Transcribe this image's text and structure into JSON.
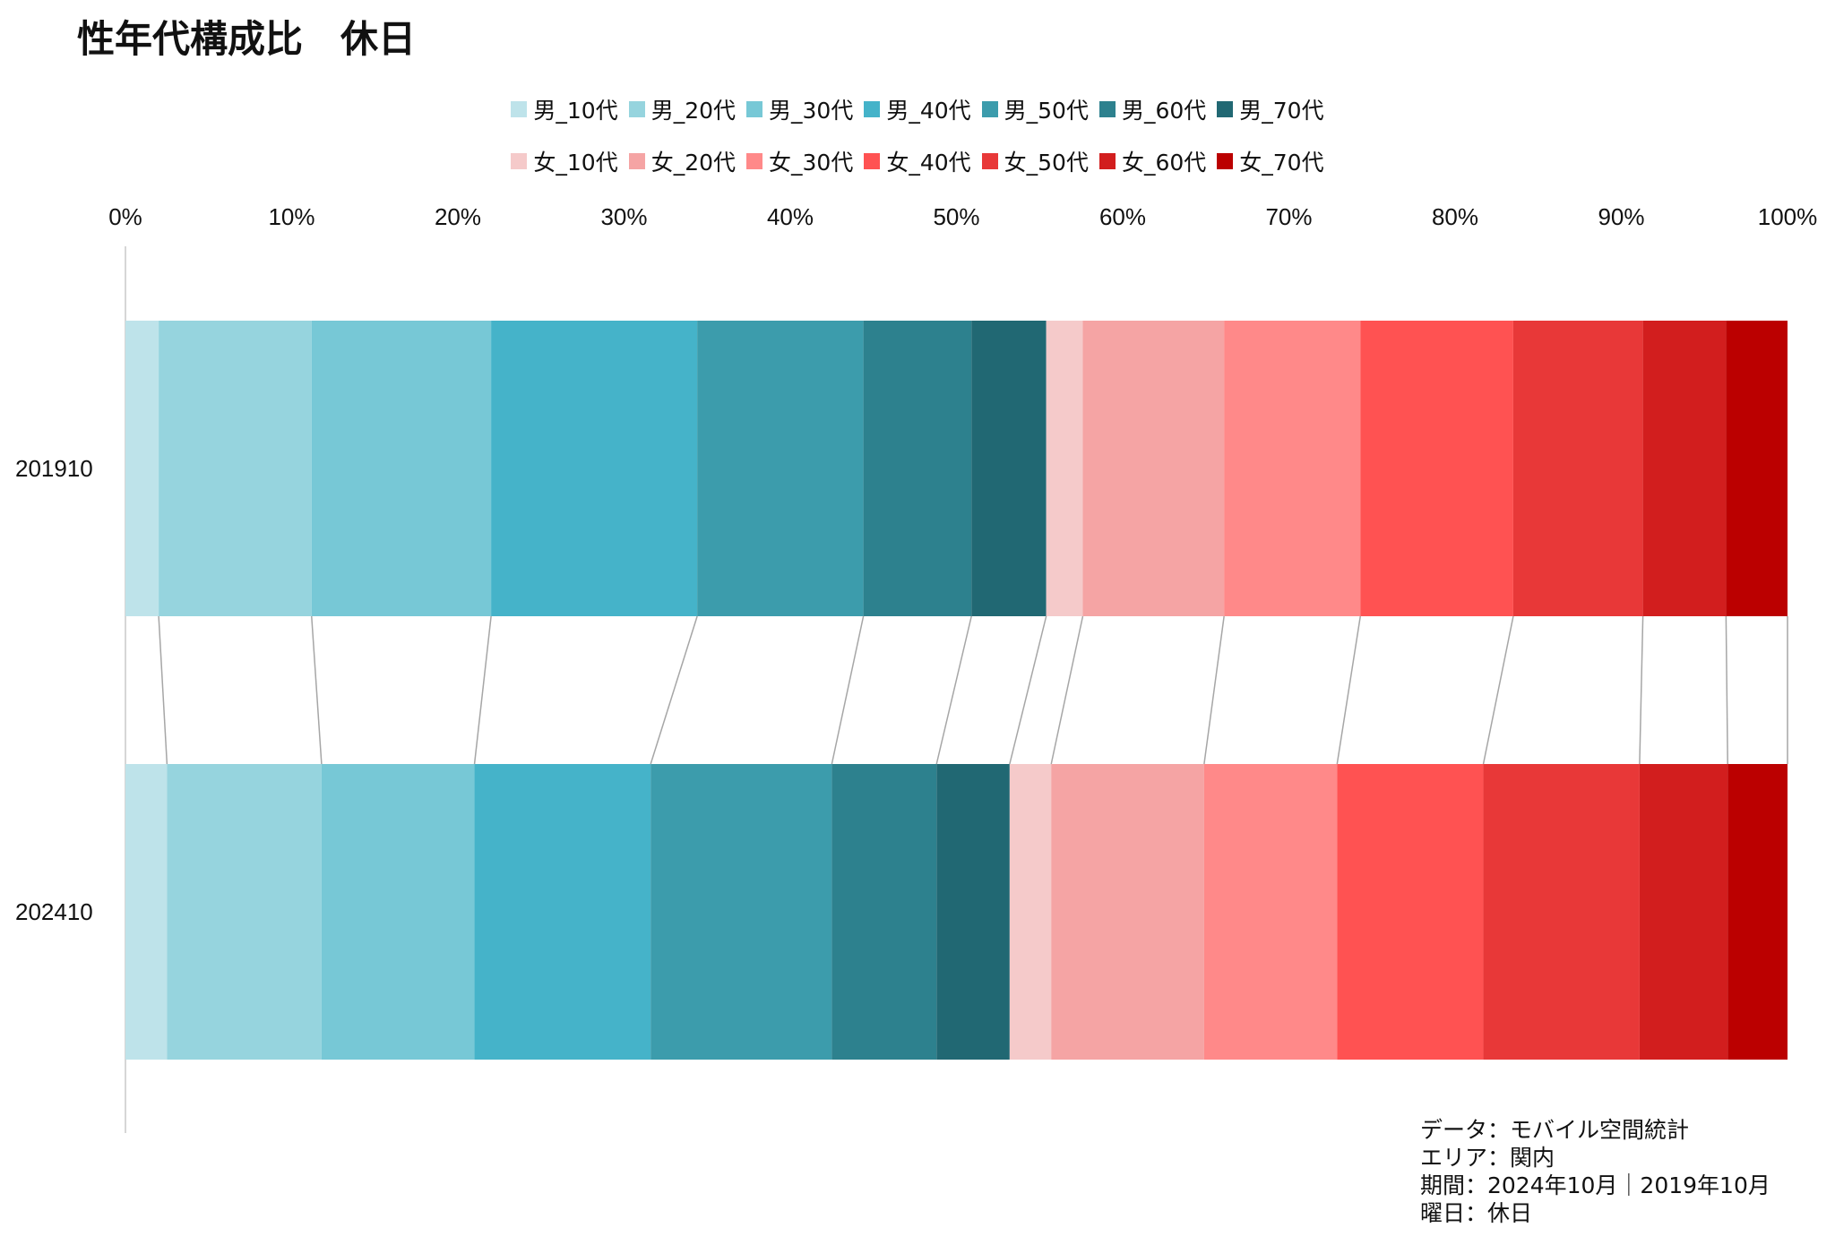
{
  "chart_data": {
    "type": "bar",
    "orientation": "horizontal",
    "stacked": true,
    "normalized": true,
    "title": "性年代構成比　休日",
    "categories": [
      "201910",
      "202410"
    ],
    "xlim": [
      0,
      100
    ],
    "x_ticks": [
      "0%",
      "10%",
      "20%",
      "30%",
      "40%",
      "50%",
      "60%",
      "70%",
      "80%",
      "90%",
      "100%"
    ],
    "legend_placement": "top-center",
    "connector_lines": true,
    "series": [
      {
        "name": "男_10代",
        "color": "#BEE3EA",
        "values": [
          2.0,
          2.5
        ]
      },
      {
        "name": "男_20代",
        "color": "#96D4DE",
        "values": [
          9.2,
          9.3
        ]
      },
      {
        "name": "男_30代",
        "color": "#77C8D6",
        "values": [
          10.8,
          9.2
        ]
      },
      {
        "name": "男_40代",
        "color": "#45B3C9",
        "values": [
          12.4,
          10.6
        ]
      },
      {
        "name": "男_50代",
        "color": "#3C9CAC",
        "values": [
          10.0,
          10.9
        ]
      },
      {
        "name": "男_60代",
        "color": "#2D818E",
        "values": [
          6.5,
          6.3
        ]
      },
      {
        "name": "男_70代",
        "color": "#216873",
        "values": [
          4.5,
          4.4
        ]
      },
      {
        "name": "女_10代",
        "color": "#F5CACA",
        "values": [
          2.2,
          2.5
        ]
      },
      {
        "name": "女_20代",
        "color": "#F5A4A4",
        "values": [
          8.5,
          9.2
        ]
      },
      {
        "name": "女_30代",
        "color": "#FF8989",
        "values": [
          8.2,
          8.0
        ]
      },
      {
        "name": "女_40代",
        "color": "#FF5252",
        "values": [
          9.2,
          8.8
        ]
      },
      {
        "name": "女_50代",
        "color": "#E83838",
        "values": [
          7.8,
          9.4
        ]
      },
      {
        "name": "女_60代",
        "color": "#D21E1E",
        "values": [
          5.0,
          5.3
        ]
      },
      {
        "name": "女_70代",
        "color": "#BB0000",
        "values": [
          3.7,
          3.6
        ]
      }
    ]
  },
  "caption": {
    "lines": [
      "データ：モバイル空間統計",
      "エリア：関内",
      "期間：2024年10月｜2019年10月",
      "曜日：休日"
    ]
  }
}
